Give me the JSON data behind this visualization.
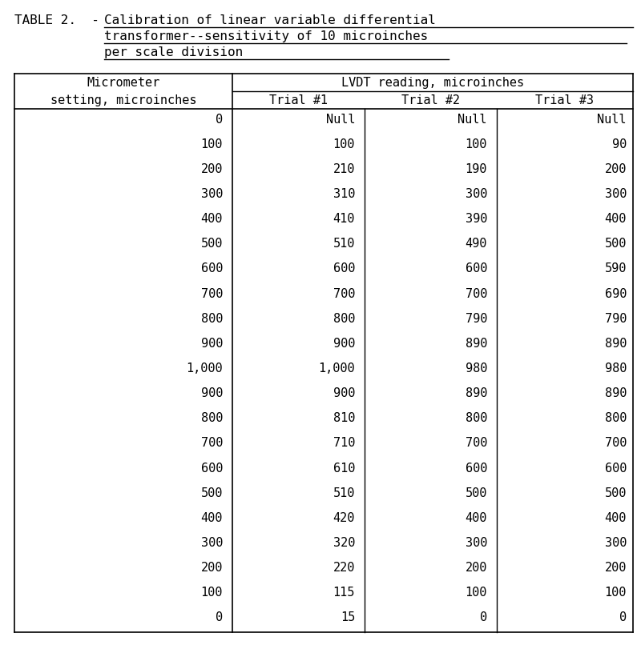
{
  "title_line1_left": "TABLE 2.  - ",
  "title_line1_right": "Calibration of linear variable differential",
  "title_line2": "transformer--sensitivity of 10 microinches",
  "title_line3": "per scale division",
  "col0_header1": "Micrometer",
  "col0_header2": "setting, microinches",
  "lvdt_header": "LVDT reading, microinches",
  "trial1_header": "Trial #1",
  "trial2_header": "Trial #2",
  "trial3_header": "Trial #3",
  "col0": [
    "0",
    "100",
    "200",
    "300",
    "400",
    "500",
    "600",
    "700",
    "800",
    "900",
    "1,000",
    "900",
    "800",
    "700",
    "600",
    "500",
    "400",
    "300",
    "200",
    "100",
    "0"
  ],
  "col1": [
    "Null",
    "100",
    "210",
    "310",
    "410",
    "510",
    "600",
    "700",
    "800",
    "900",
    "1,000",
    "900",
    "810",
    "710",
    "610",
    "510",
    "420",
    "320",
    "220",
    "115",
    "15"
  ],
  "col2": [
    "Null",
    "100",
    "190",
    "300",
    "390",
    "490",
    "600",
    "700",
    "790",
    "890",
    "980",
    "890",
    "800",
    "700",
    "600",
    "500",
    "400",
    "300",
    "200",
    "100",
    "0"
  ],
  "col3": [
    "Null",
    "90",
    "200",
    "300",
    "400",
    "500",
    "590",
    "690",
    "790",
    "890",
    "980",
    "890",
    "800",
    "700",
    "600",
    "500",
    "400",
    "300",
    "200",
    "100",
    "0"
  ],
  "bg_color": "#ffffff",
  "text_color": "#000000",
  "font_size": 11.0,
  "title_font_size": 11.5
}
